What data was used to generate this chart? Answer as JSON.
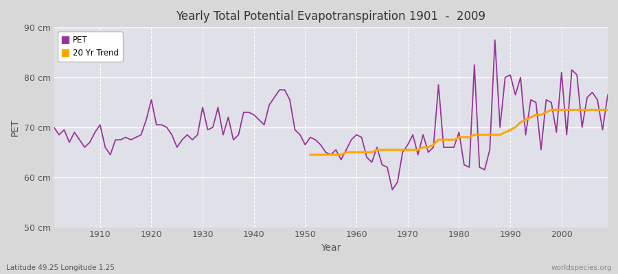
{
  "title": "Yearly Total Potential Evapotranspiration 1901  -  2009",
  "ylabel": "PET",
  "xlabel": "Year",
  "footnote_left": "Latitude 49.25 Longitude 1.25",
  "footnote_right": "worldspecies.org",
  "ylim": [
    50,
    90
  ],
  "yticks": [
    50,
    60,
    70,
    80,
    90
  ],
  "ytick_labels": [
    "50 cm",
    "60 cm",
    "70 cm",
    "80 cm",
    "90 cm"
  ],
  "bg_outer_color": "#d8d8d8",
  "bg_inner_color": "#e0e0e8",
  "pet_color": "#993399",
  "trend_color": "#ffa500",
  "pet_linewidth": 1.3,
  "trend_linewidth": 2.2,
  "years": [
    1901,
    1902,
    1903,
    1904,
    1905,
    1906,
    1907,
    1908,
    1909,
    1910,
    1911,
    1912,
    1913,
    1914,
    1915,
    1916,
    1917,
    1918,
    1919,
    1920,
    1921,
    1922,
    1923,
    1924,
    1925,
    1926,
    1927,
    1928,
    1929,
    1930,
    1931,
    1932,
    1933,
    1934,
    1935,
    1936,
    1937,
    1938,
    1939,
    1940,
    1941,
    1942,
    1943,
    1944,
    1945,
    1946,
    1947,
    1948,
    1949,
    1950,
    1951,
    1952,
    1953,
    1954,
    1955,
    1956,
    1957,
    1958,
    1959,
    1960,
    1961,
    1962,
    1963,
    1964,
    1965,
    1966,
    1967,
    1968,
    1969,
    1970,
    1971,
    1972,
    1973,
    1974,
    1975,
    1976,
    1977,
    1978,
    1979,
    1980,
    1981,
    1982,
    1983,
    1984,
    1985,
    1986,
    1987,
    1988,
    1989,
    1990,
    1991,
    1992,
    1993,
    1994,
    1995,
    1996,
    1997,
    1998,
    1999,
    2000,
    2001,
    2002,
    2003,
    2004,
    2005,
    2006,
    2007,
    2008,
    2009
  ],
  "pet_values": [
    70.0,
    68.5,
    69.5,
    67.0,
    69.0,
    67.5,
    66.0,
    67.0,
    69.0,
    70.5,
    66.0,
    64.5,
    67.5,
    67.5,
    68.0,
    67.5,
    68.0,
    68.5,
    71.5,
    75.5,
    70.5,
    70.5,
    70.0,
    68.5,
    66.0,
    67.5,
    68.5,
    67.5,
    68.5,
    74.0,
    69.5,
    70.0,
    74.0,
    68.5,
    72.0,
    67.5,
    68.5,
    73.0,
    73.0,
    72.5,
    71.5,
    70.5,
    74.5,
    76.0,
    77.5,
    77.5,
    75.5,
    69.5,
    68.5,
    66.5,
    68.0,
    67.5,
    66.5,
    65.0,
    64.5,
    65.5,
    63.5,
    65.5,
    67.5,
    68.5,
    68.0,
    64.0,
    63.0,
    66.0,
    62.5,
    62.0,
    57.5,
    59.0,
    65.0,
    66.5,
    68.5,
    64.5,
    68.5,
    65.0,
    66.0,
    78.5,
    66.0,
    66.0,
    66.0,
    69.0,
    62.5,
    62.0,
    82.5,
    62.0,
    61.5,
    65.5,
    87.5,
    70.0,
    80.0,
    80.5,
    76.5,
    80.0,
    68.5,
    75.5,
    75.0,
    65.5,
    75.5,
    75.0,
    69.0,
    81.0,
    68.5,
    81.5,
    80.5,
    70.0,
    76.0,
    77.0,
    75.5,
    69.5,
    76.5
  ],
  "trend_values_years": [
    1951,
    1952,
    1953,
    1954,
    1955,
    1956,
    1957,
    1958,
    1959,
    1960,
    1961,
    1962,
    1963,
    1964,
    1965,
    1966,
    1967,
    1968,
    1969,
    1970,
    1971,
    1972,
    1973,
    1974,
    1975,
    1976,
    1977,
    1978,
    1979,
    1980,
    1981,
    1982,
    1983,
    1984,
    1985,
    1986,
    1987,
    1988,
    1989,
    1990,
    1991,
    1992,
    1993,
    1994,
    1995,
    1996,
    1997,
    1998,
    1999,
    2000,
    2001,
    2002,
    2003,
    2004,
    2005,
    2006,
    2007,
    2008,
    2009
  ],
  "trend_values": [
    64.5,
    64.5,
    64.5,
    64.5,
    64.5,
    64.5,
    64.5,
    65.0,
    65.0,
    65.0,
    65.0,
    65.0,
    65.0,
    65.5,
    65.5,
    65.5,
    65.5,
    65.5,
    65.5,
    65.5,
    65.5,
    65.5,
    66.0,
    66.0,
    66.5,
    67.5,
    67.5,
    67.5,
    67.5,
    68.0,
    68.0,
    68.0,
    68.5,
    68.5,
    68.5,
    68.5,
    68.5,
    68.5,
    69.0,
    69.5,
    70.0,
    71.0,
    71.5,
    72.0,
    72.5,
    72.5,
    73.0,
    73.5,
    73.5,
    73.5,
    73.5,
    73.5,
    73.5,
    73.5,
    73.5,
    73.5,
    73.5,
    73.5,
    73.5
  ],
  "legend_pet_label": "PET",
  "legend_trend_label": "20 Yr Trend"
}
